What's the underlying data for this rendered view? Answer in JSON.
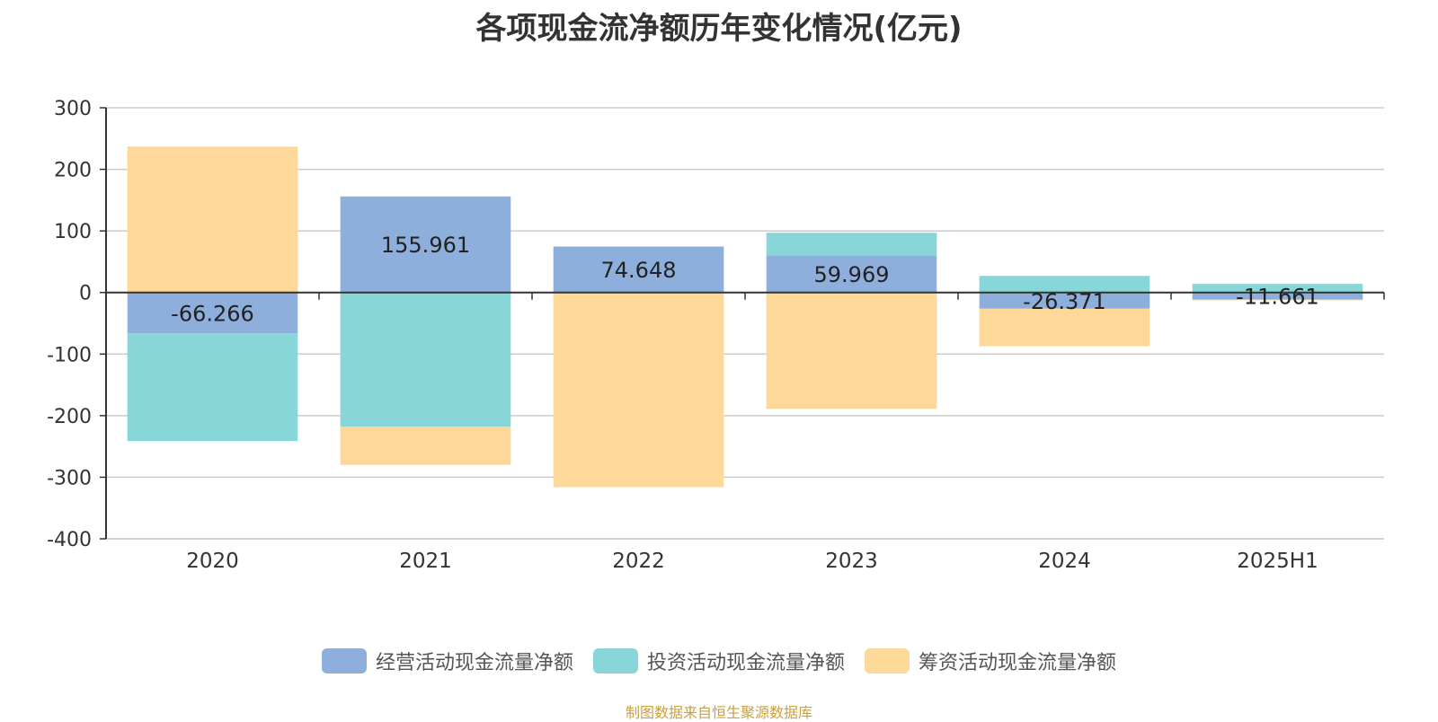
{
  "source_note": "制图数据来自恒生聚源数据库",
  "chart_data": {
    "type": "bar",
    "stacked": true,
    "title": "各项现金流净额历年变化情况(亿元)",
    "categories": [
      "2020",
      "2021",
      "2022",
      "2023",
      "2024",
      "2025H1"
    ],
    "ylim": [
      -400,
      300
    ],
    "yticks": [
      300,
      200,
      100,
      0,
      -100,
      -200,
      -300,
      -400
    ],
    "grid": true,
    "legend_position": "bottom",
    "series": [
      {
        "name": "经营活动现金流量净额",
        "color": "#8eaedb",
        "values": [
          -66.266,
          155.961,
          74.648,
          59.969,
          -26.371,
          -11.661
        ],
        "labels": [
          "-66.266",
          "155.961",
          "74.648",
          "59.969",
          "-26.371",
          "-11.661"
        ]
      },
      {
        "name": "投资活动现金流量净额",
        "color": "#88d6d8",
        "values": [
          -175,
          -218,
          -1,
          37,
          27,
          14
        ]
      },
      {
        "name": "筹资活动现金流量净额",
        "color": "#fed898",
        "values": [
          237,
          -62,
          -315,
          -189,
          -61,
          -1
        ]
      }
    ]
  }
}
